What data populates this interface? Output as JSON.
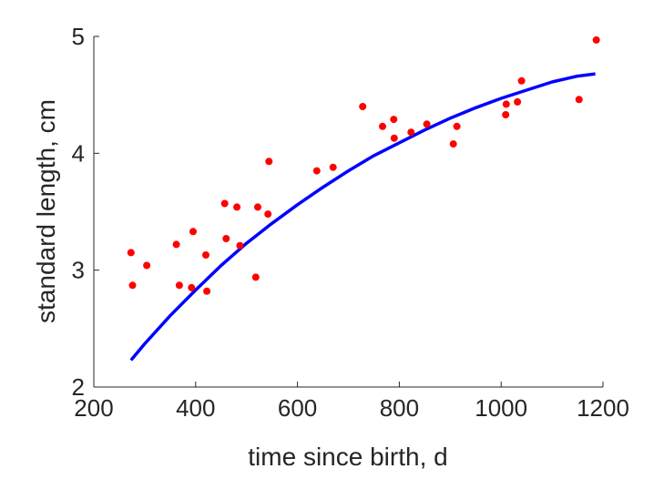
{
  "chart_data": {
    "type": "scatter",
    "title": "",
    "xlabel": "time since birth, d",
    "ylabel": "standard length, cm",
    "xlim": [
      200,
      1200
    ],
    "ylim": [
      2,
      5
    ],
    "xticks": [
      200,
      400,
      600,
      800,
      1000,
      1200
    ],
    "yticks": [
      2,
      3,
      4,
      5
    ],
    "grid": false,
    "series": [
      {
        "kind": "points",
        "color": "#ff0000",
        "x": [
          273,
          276,
          304,
          362,
          368,
          392,
          395,
          420,
          422,
          457,
          460,
          481,
          487,
          518,
          522,
          542,
          544,
          638,
          670,
          728,
          767,
          789,
          790,
          823,
          854,
          906,
          913,
          1009,
          1010,
          1032,
          1040,
          1153,
          1187
        ],
        "y": [
          3.15,
          2.87,
          3.04,
          3.22,
          2.87,
          2.85,
          3.33,
          3.13,
          2.82,
          3.57,
          3.27,
          3.54,
          3.21,
          2.94,
          3.54,
          3.48,
          3.93,
          3.85,
          3.88,
          4.4,
          4.23,
          4.29,
          4.13,
          4.18,
          4.25,
          4.08,
          4.23,
          4.33,
          4.42,
          4.44,
          4.62,
          4.46,
          4.97
        ]
      },
      {
        "kind": "curve",
        "color": "#0000ff",
        "x": [
          273,
          300,
          350,
          400,
          450,
          500,
          550,
          600,
          650,
          700,
          750,
          800,
          850,
          900,
          950,
          1000,
          1050,
          1100,
          1150,
          1185
        ],
        "y": [
          2.23,
          2.37,
          2.61,
          2.83,
          3.04,
          3.23,
          3.4,
          3.56,
          3.71,
          3.85,
          3.98,
          4.09,
          4.2,
          4.3,
          4.39,
          4.47,
          4.54,
          4.61,
          4.66,
          4.68
        ]
      }
    ]
  }
}
